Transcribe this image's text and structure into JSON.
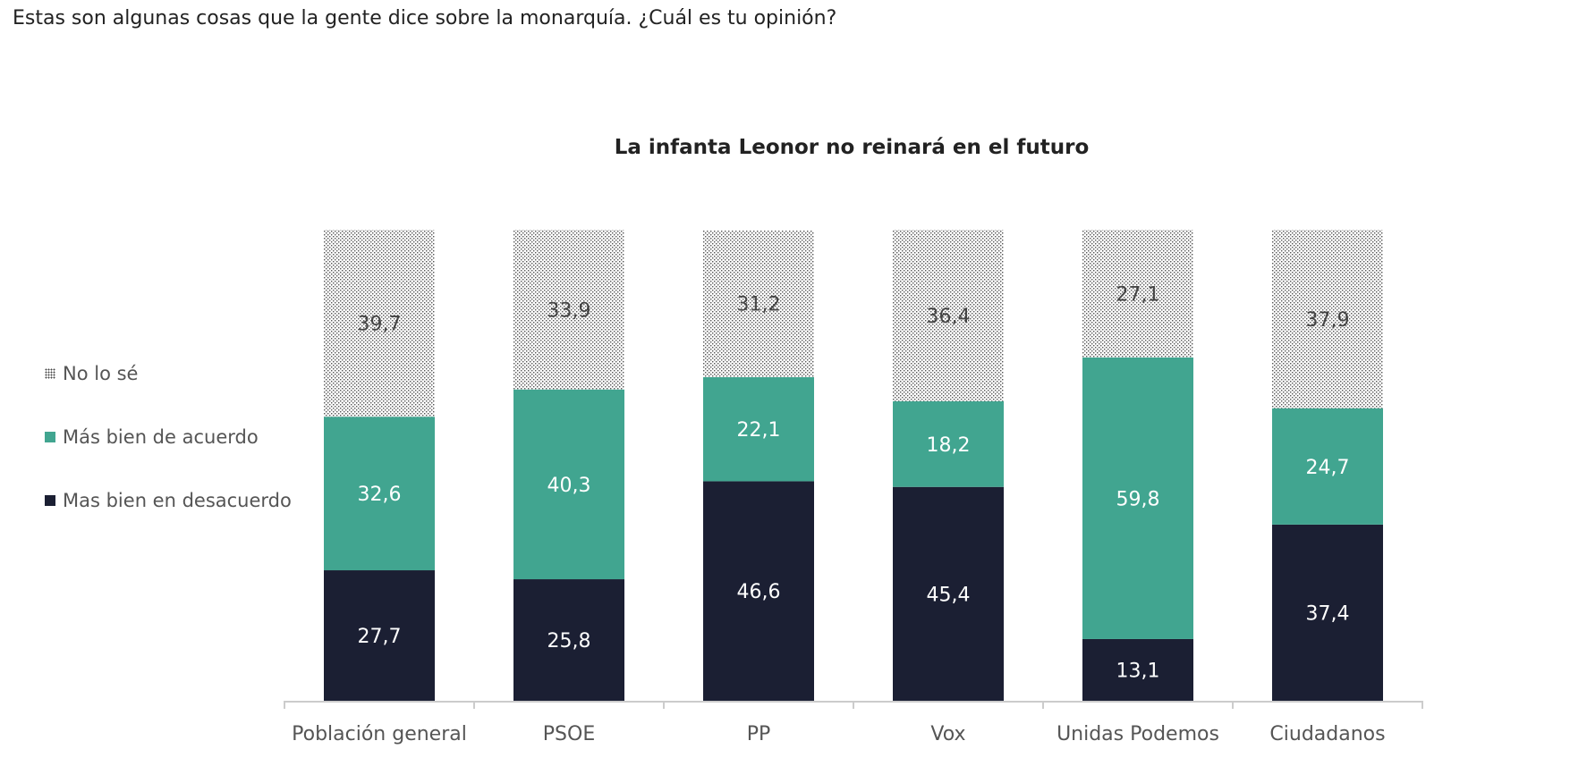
{
  "header": {
    "question": "Estas son algunas cosas que la gente dice sobre la monarquía. ¿Cuál es tu opinión?"
  },
  "chart_data": {
    "type": "bar",
    "stacked": true,
    "title": "La infanta Leonor no reinará en el futuro",
    "xlabel": "",
    "ylabel": "",
    "ylim": [
      0,
      100
    ],
    "legend_position": "left",
    "categories": [
      "Población general",
      "PSOE",
      "PP",
      "Vox",
      "Unidas Podemos",
      "Ciudadanos"
    ],
    "series": [
      {
        "name": "Mas bien en desacuerdo",
        "values": [
          27.7,
          25.8,
          46.6,
          45.4,
          13.1,
          37.4
        ],
        "labels": [
          "27,7",
          "25,8",
          "46,6",
          "45,4",
          "13,1",
          "37,4"
        ],
        "color": "#1b1f33",
        "pattern": "solid",
        "label_color": "#ffffff"
      },
      {
        "name": "Más bien de acuerdo",
        "values": [
          32.6,
          40.3,
          22.1,
          18.2,
          59.8,
          24.7
        ],
        "labels": [
          "32,6",
          "40,3",
          "22,1",
          "18,2",
          "59,8",
          "24,7"
        ],
        "color": "#41a590",
        "pattern": "solid",
        "label_color": "#ffffff"
      },
      {
        "name": "No lo sé",
        "values": [
          39.7,
          33.9,
          31.2,
          36.4,
          27.1,
          37.9
        ],
        "labels": [
          "39,7",
          "33,9",
          "31,2",
          "36,4",
          "27,1",
          "37,9"
        ],
        "color": "#444444",
        "pattern": "dots",
        "label_color": "#444444"
      }
    ],
    "legend_order": [
      "No lo sé",
      "Más bien de acuerdo",
      "Mas bien en desacuerdo"
    ]
  }
}
